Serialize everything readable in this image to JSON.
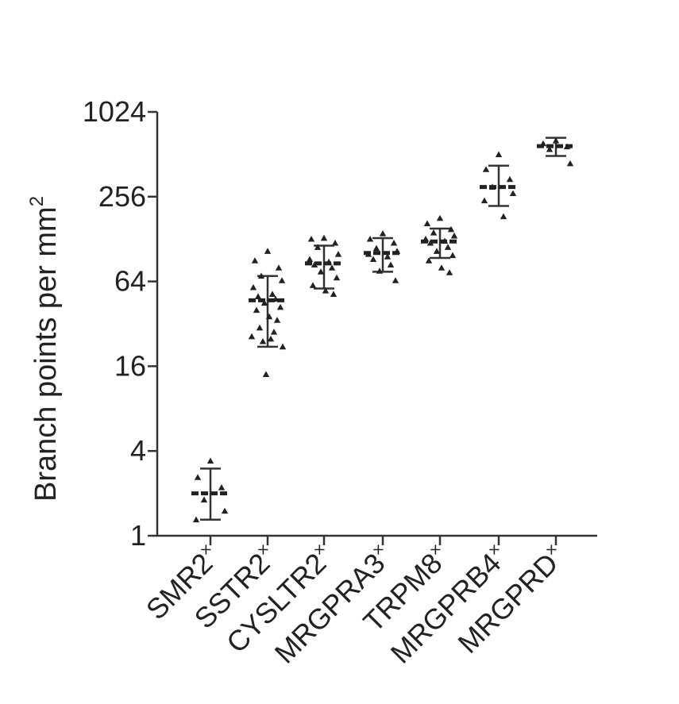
{
  "chart_data": {
    "type": "scatter",
    "ylabel": "Branch points per mm",
    "ylabel_superscript": "2",
    "yscale": "log2",
    "ylim": [
      1,
      1024
    ],
    "yticks": [
      1,
      4,
      16,
      64,
      256,
      1024
    ],
    "ytick_labels": [
      "1",
      "4",
      "16",
      "64",
      "256",
      "1024"
    ],
    "category_suffix": "×",
    "categories": [
      "SMR2",
      "SSTR2",
      "CYSLTR2",
      "MRGPRA3",
      "TRPM8",
      "MRGPRB4",
      "MRGPRD"
    ],
    "groups": [
      {
        "mean": 2.0,
        "sd_low": 1.3,
        "sd_high": 3.0,
        "points": [
          3.4,
          2.6,
          2.2,
          1.8,
          1.5,
          1.3
        ]
      },
      {
        "mean": 47,
        "sd_low": 22,
        "sd_high": 70,
        "points": [
          105,
          90,
          80,
          70,
          65,
          58,
          52,
          50,
          48,
          45,
          42,
          40,
          36,
          34,
          30,
          28,
          26,
          25,
          24,
          22,
          14
        ]
      },
      {
        "mean": 86,
        "sd_low": 57,
        "sd_high": 115,
        "points": [
          130,
          128,
          120,
          112,
          100,
          92,
          88,
          84,
          80,
          75,
          68,
          60,
          55,
          52
        ]
      },
      {
        "mean": 102,
        "sd_low": 75,
        "sd_high": 130,
        "points": [
          140,
          128,
          120,
          110,
          105,
          100,
          96,
          92,
          84,
          76,
          65
        ]
      },
      {
        "mean": 123,
        "sd_low": 94,
        "sd_high": 152,
        "points": [
          180,
          165,
          150,
          142,
          135,
          128,
          124,
          120,
          112,
          105,
          98,
          90,
          80,
          74
        ]
      },
      {
        "mean": 300,
        "sd_low": 220,
        "sd_high": 425,
        "points": [
          510,
          400,
          340,
          300,
          270,
          240,
          185
        ]
      },
      {
        "mean": 585,
        "sd_low": 498,
        "sd_high": 670,
        "points": [
          640,
          610,
          580,
          555,
          440
        ]
      }
    ]
  }
}
